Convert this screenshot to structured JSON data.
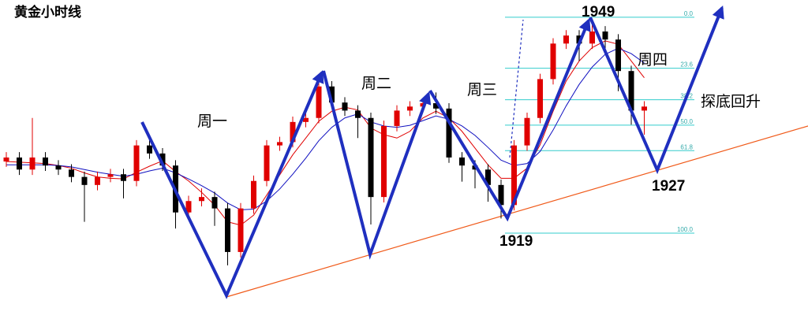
{
  "chart_data": {
    "type": "candlestick",
    "title": "黄金小时线",
    "ylim": [
      1904,
      1951.6
    ],
    "open": [
      1927.5,
      1928.1,
      1926.3,
      1928.1,
      1926.9,
      1926.3,
      1925.2,
      1924.0,
      1925.2,
      1925.6,
      1924.6,
      1929.9,
      1928.7,
      1926.9,
      1919.9,
      1921.6,
      1922.2,
      1920.5,
      1914.0,
      1920.5,
      1924.6,
      1929.9,
      1930.4,
      1933.4,
      1934.0,
      1938.7,
      1936.3,
      1935.1,
      1934.0,
      1922.2,
      1932.8,
      1935.1,
      1935.7,
      1936.2,
      1935.4,
      1928.1,
      1926.9,
      1926.3,
      1924.0,
      1921.0,
      1929.9,
      1934.0,
      1939.8,
      1945.1,
      1946.3,
      1945.1,
      1946.9,
      1945.7,
      1941.0,
      1935.1
    ],
    "high": [
      1928.9,
      1928.9,
      1934.0,
      1928.9,
      1927.7,
      1927.1,
      1926.0,
      1926.0,
      1926.4,
      1926.4,
      1930.7,
      1930.7,
      1929.5,
      1927.7,
      1922.4,
      1923.5,
      1923.0,
      1921.3,
      1921.3,
      1925.4,
      1930.7,
      1931.2,
      1934.2,
      1934.8,
      1939.5,
      1939.5,
      1937.1,
      1935.9,
      1934.8,
      1933.6,
      1935.9,
      1936.5,
      1937.0,
      1937.8,
      1936.2,
      1928.9,
      1927.7,
      1927.1,
      1924.8,
      1930.7,
      1934.8,
      1940.6,
      1945.9,
      1947.1,
      1947.1,
      1947.9,
      1947.7,
      1946.5,
      1941.8,
      1936.5
    ],
    "low": [
      1926.7,
      1925.5,
      1925.5,
      1926.1,
      1925.5,
      1924.4,
      1918.5,
      1923.2,
      1924.4,
      1922.0,
      1923.8,
      1927.9,
      1926.1,
      1917.5,
      1919.1,
      1920.8,
      1917.9,
      1912.0,
      1913.2,
      1919.7,
      1923.8,
      1929.1,
      1929.6,
      1932.6,
      1933.2,
      1935.5,
      1934.3,
      1931.0,
      1918.1,
      1921.4,
      1932.0,
      1934.3,
      1934.9,
      1934.6,
      1927.3,
      1924.5,
      1923.5,
      1921.5,
      1919.0,
      1920.2,
      1929.1,
      1933.2,
      1939.0,
      1944.3,
      1942.5,
      1944.3,
      1943.5,
      1938.0,
      1933.0,
      1931.5
    ],
    "close": [
      1928.1,
      1926.3,
      1928.1,
      1926.9,
      1926.3,
      1925.2,
      1924.0,
      1925.2,
      1925.6,
      1924.6,
      1929.9,
      1928.7,
      1926.9,
      1919.9,
      1921.6,
      1922.2,
      1920.5,
      1914.0,
      1920.5,
      1924.6,
      1929.9,
      1930.4,
      1933.4,
      1934.0,
      1938.7,
      1936.3,
      1935.1,
      1934.0,
      1922.2,
      1932.8,
      1935.1,
      1935.7,
      1936.2,
      1935.4,
      1928.1,
      1926.9,
      1926.3,
      1924.0,
      1921.0,
      1929.9,
      1934.0,
      1939.8,
      1945.1,
      1946.3,
      1945.1,
      1946.9,
      1945.7,
      1941.0,
      1935.1,
      1935.7
    ],
    "up_color": "#e00000",
    "down_color": "#000000",
    "ma_lines": [
      {
        "color": "#e00000",
        "values": [
          1927.5,
          1927.4,
          1927.3,
          1927.2,
          1926.9,
          1926.5,
          1925.8,
          1925.2,
          1925.0,
          1924.9,
          1925.9,
          1926.8,
          1927.6,
          1926.0,
          1924.6,
          1922.9,
          1921.0,
          1918.5,
          1918.0,
          1919.5,
          1922.5,
          1925.5,
          1928.5,
          1931.0,
          1933.5,
          1935.0,
          1935.6,
          1935.2,
          1932.5,
          1931.5,
          1931.0,
          1932.0,
          1934.0,
          1935.0,
          1934.0,
          1932.0,
          1929.5,
          1927.0,
          1925.0,
          1925.0,
          1926.5,
          1930.0,
          1935.0,
          1939.5,
          1942.5,
          1944.5,
          1945.5,
          1945.0,
          1942.5,
          1940.0
        ]
      },
      {
        "color": "#1010c0",
        "values": [
          1927.0,
          1927.0,
          1927.0,
          1927.0,
          1926.9,
          1926.7,
          1926.3,
          1925.9,
          1925.6,
          1925.3,
          1925.6,
          1926.1,
          1926.5,
          1925.8,
          1924.9,
          1923.9,
          1922.8,
          1921.3,
          1920.3,
          1920.4,
          1921.6,
          1923.4,
          1925.6,
          1928.0,
          1930.6,
          1932.6,
          1934.0,
          1934.6,
          1933.4,
          1932.8,
          1932.6,
          1932.9,
          1933.6,
          1934.3,
          1933.8,
          1932.8,
          1931.4,
          1929.6,
          1927.7,
          1926.9,
          1927.2,
          1929.0,
          1932.2,
          1935.8,
          1939.0,
          1941.6,
          1943.5,
          1944.4,
          1943.6,
          1942.2
        ]
      }
    ],
    "y2lim": [
      -8,
      139.8
    ],
    "y2_inverted": true,
    "y2ticks": [
      {
        "value": 0,
        "label": "0.0"
      },
      {
        "value": 23.6,
        "label": "23.6"
      },
      {
        "value": 38.2,
        "label": "38.2"
      },
      {
        "value": 50,
        "label": "50.0"
      },
      {
        "value": 61.8,
        "label": "61.8"
      },
      {
        "value": 100,
        "label": "100.0"
      }
    ],
    "fib_color": "#33cccc",
    "annotations": [
      "周一",
      "周二",
      "周三",
      "周四",
      "探底回升"
    ],
    "price_labels": [
      1949,
      1919,
      1927
    ]
  }
}
